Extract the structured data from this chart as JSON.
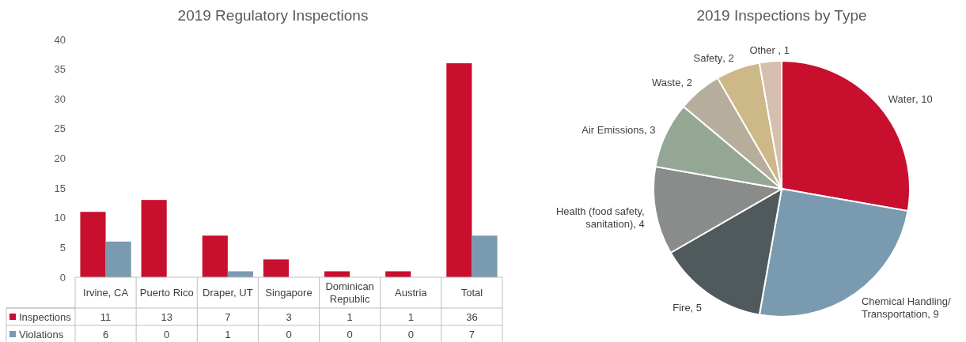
{
  "chart_data": [
    {
      "type": "bar",
      "title": "2019 Regulatory Inspections",
      "categories": [
        "Irvine, CA",
        "Puerto Rico",
        "Draper, UT",
        "Singapore",
        "Dominican Republic",
        "Austria",
        "Total"
      ],
      "series": [
        {
          "name": "Inspections",
          "color": "#c8102e",
          "values": [
            11,
            13,
            7,
            3,
            1,
            1,
            36
          ]
        },
        {
          "name": "Violations",
          "color": "#7a9aaf",
          "values": [
            6,
            0,
            1,
            0,
            0,
            0,
            7
          ]
        }
      ],
      "ylim": [
        0,
        40
      ],
      "yticks": [
        0,
        5,
        10,
        15,
        20,
        25,
        30,
        35,
        40
      ],
      "grid": false,
      "legend": "bottom left",
      "data_labels": true
    },
    {
      "type": "pie",
      "title": "2019 Inspections by Type",
      "categories": [
        "Water",
        "Chemical Handling/Transportation",
        "Fire",
        "Health (food safety, sanitation)",
        "Air Emissions",
        "Waste",
        "Safety",
        "Other "
      ],
      "values": [
        10,
        9,
        5,
        4,
        3,
        2,
        2,
        1
      ],
      "colors": [
        "#c8102e",
        "#7a9aaf",
        "#505a5c",
        "#8a8c8c",
        "#94a794",
        "#b7ad9c",
        "#cdb888",
        "#d6bfae"
      ],
      "value_labels": [
        ", 10",
        ", 9",
        ", 5",
        ", 4",
        ", 3",
        ", 2",
        ", 2",
        ", 1"
      ]
    }
  ]
}
